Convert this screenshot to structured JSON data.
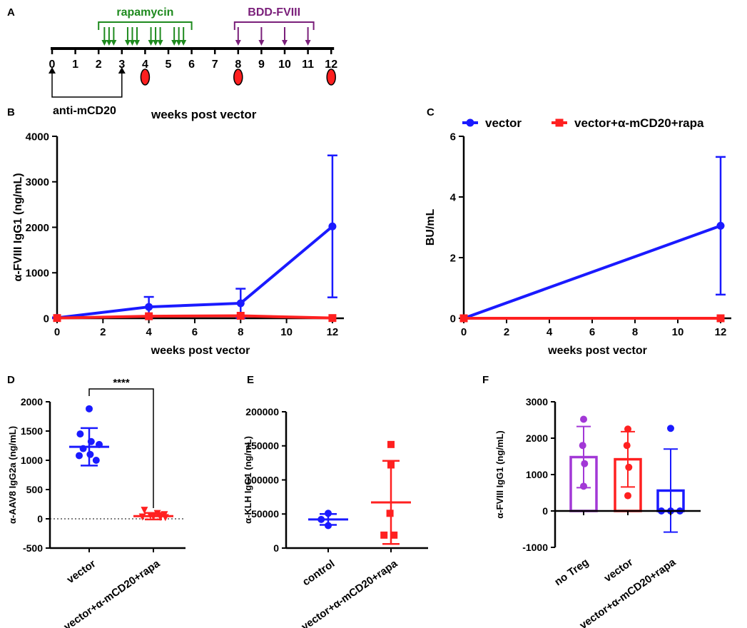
{
  "colors": {
    "blue": "#1a1aff",
    "red": "#ff2020",
    "green": "#1e8a1e",
    "purple": "#7a1f7a",
    "violet": "#a238d6",
    "black": "#000000",
    "oval_fill": "#ff1f1f"
  },
  "panel_letters": {
    "a": "A",
    "b": "B",
    "c": "C",
    "d": "D",
    "e": "E",
    "f": "F"
  },
  "timeline": {
    "xlabel": "weeks post vector",
    "ticks": [
      0,
      1,
      2,
      3,
      4,
      5,
      6,
      7,
      8,
      9,
      10,
      11,
      12
    ],
    "rapamycin": {
      "label": "rapamycin",
      "start_week": 2,
      "end_week": 6,
      "dose_weeks": [
        2.25,
        2.45,
        2.65,
        3.25,
        3.45,
        3.65,
        4.25,
        4.45,
        4.65,
        5.25,
        5.45,
        5.65
      ]
    },
    "bdd_fviii": {
      "label": "BDD-FVIII",
      "start_week": 8,
      "end_week": 11,
      "dose_weeks": [
        8,
        9,
        10,
        11
      ]
    },
    "bleed_weeks": [
      4,
      8,
      12
    ],
    "anti_cd20": {
      "label": "anti-mCD20",
      "weeks": [
        0,
        3
      ]
    }
  },
  "chart_data": [
    {
      "panel": "B",
      "type": "line",
      "title": "",
      "xlabel": "weeks post vector",
      "ylabel": "α-FVIII IgG1 (ng/mL)",
      "xlim": [
        0,
        12.5
      ],
      "ylim": [
        0,
        4000
      ],
      "xticks": [
        0,
        2,
        4,
        6,
        8,
        10,
        12
      ],
      "yticks": [
        0,
        1000,
        2000,
        3000,
        4000
      ],
      "series": [
        {
          "name": "vector",
          "color": "#1a1aff",
          "marker": "circle",
          "x": [
            0,
            4,
            8,
            12
          ],
          "y": [
            10,
            250,
            330,
            2020
          ],
          "err": [
            10,
            220,
            320,
            1560
          ]
        },
        {
          "name": "vector+α-mCD20+rapa",
          "color": "#ff2020",
          "marker": "square",
          "x": [
            0,
            4,
            8,
            12
          ],
          "y": [
            5,
            45,
            55,
            5
          ],
          "err": [
            0,
            0,
            0,
            0
          ]
        }
      ]
    },
    {
      "panel": "C",
      "type": "line",
      "title": "",
      "xlabel": "weeks post vector",
      "ylabel": "BU/mL",
      "xlim": [
        0,
        12.5
      ],
      "ylim": [
        0,
        6
      ],
      "xticks": [
        0,
        2,
        4,
        6,
        8,
        10,
        12
      ],
      "yticks": [
        0,
        2,
        4,
        6
      ],
      "legend": {
        "position": "top",
        "entries": [
          "vector",
          "vector+α-mCD20+rapa"
        ]
      },
      "series": [
        {
          "name": "vector",
          "color": "#1a1aff",
          "marker": "circle",
          "x": [
            0,
            12
          ],
          "y": [
            0,
            3.05
          ],
          "err": [
            0,
            2.27
          ]
        },
        {
          "name": "vector+α-mCD20+rapa",
          "color": "#ff2020",
          "marker": "square",
          "x": [
            0,
            12
          ],
          "y": [
            0,
            0
          ],
          "err": [
            0,
            0
          ]
        }
      ]
    },
    {
      "panel": "D",
      "type": "scatter",
      "title": "",
      "xlabel": "",
      "ylabel": "α-AAV8 IgG2a (ng/mL)",
      "ylim": [
        -500,
        2000
      ],
      "yticks": [
        -500,
        0,
        500,
        1000,
        1500,
        2000
      ],
      "categories": [
        "vector",
        "vector+α-mCD20+rapa"
      ],
      "dotted_zero": true,
      "significance": "****",
      "series": [
        {
          "name": "vector",
          "color": "#1a1aff",
          "marker": "circle",
          "mean": 1230,
          "sd": 320,
          "points": [
            1880,
            1450,
            1320,
            1270,
            1200,
            1100,
            1080,
            1000
          ],
          "jitter": [
            0,
            -0.45,
            0.1,
            0.5,
            -0.3,
            0.05,
            -0.5,
            0.35
          ]
        },
        {
          "name": "vector+α-mCD20+rapa",
          "color": "#ff2020",
          "marker": "triangle-down",
          "mean": 45,
          "sd": 55,
          "points": [
            145,
            90,
            70,
            55,
            35,
            30,
            25,
            20
          ],
          "jitter": [
            -0.45,
            0.2,
            0.55,
            -0.15,
            0,
            -0.55,
            0.35,
            0.6
          ]
        }
      ]
    },
    {
      "panel": "E",
      "type": "scatter",
      "title": "",
      "xlabel": "",
      "ylabel": "α-KLH IgG1 (ng/mL)",
      "ylim": [
        0,
        200000
      ],
      "yticks": [
        0,
        50000,
        100000,
        150000,
        200000
      ],
      "categories": [
        "control",
        "vector+α-mCD20+rapa"
      ],
      "series": [
        {
          "name": "control",
          "color": "#1a1aff",
          "marker": "circle",
          "mean": 42000,
          "sd": 8000,
          "points": [
            51000,
            42000,
            33000
          ],
          "jitter": [
            0,
            -0.35,
            0
          ]
        },
        {
          "name": "vector+α-mCD20+rapa",
          "color": "#ff2020",
          "marker": "square",
          "mean": 67000,
          "sd": 61000,
          "points": [
            152000,
            122000,
            51000,
            19000,
            19000
          ],
          "jitter": [
            0,
            0,
            -0.05,
            -0.35,
            0.15
          ]
        }
      ]
    },
    {
      "panel": "F",
      "type": "bar",
      "title": "",
      "xlabel": "",
      "ylabel": "α-FVIII IgG1 (ng/mL)",
      "ylim": [
        -1000,
        3000
      ],
      "yticks": [
        -1000,
        0,
        1000,
        2000,
        3000
      ],
      "categories": [
        "no Treg",
        "vector",
        "vector+α-mCD20+rapa"
      ],
      "series": [
        {
          "name": "no Treg",
          "color": "#a238d6",
          "value": 1480,
          "sd": 840,
          "points": [
            2520,
            1800,
            1300,
            680
          ],
          "jitter": [
            0,
            -0.05,
            0.05,
            0
          ]
        },
        {
          "name": "vector",
          "color": "#ff2020",
          "value": 1420,
          "sd": 760,
          "points": [
            2250,
            1800,
            1200,
            420
          ],
          "jitter": [
            0,
            -0.05,
            0.05,
            0
          ]
        },
        {
          "name": "vector+α-mCD20+rapa",
          "color": "#1a1aff",
          "value": 560,
          "sd": 1140,
          "points": [
            2270,
            0,
            0,
            0
          ],
          "jitter": [
            0,
            -0.5,
            0,
            0.5
          ]
        }
      ]
    }
  ]
}
